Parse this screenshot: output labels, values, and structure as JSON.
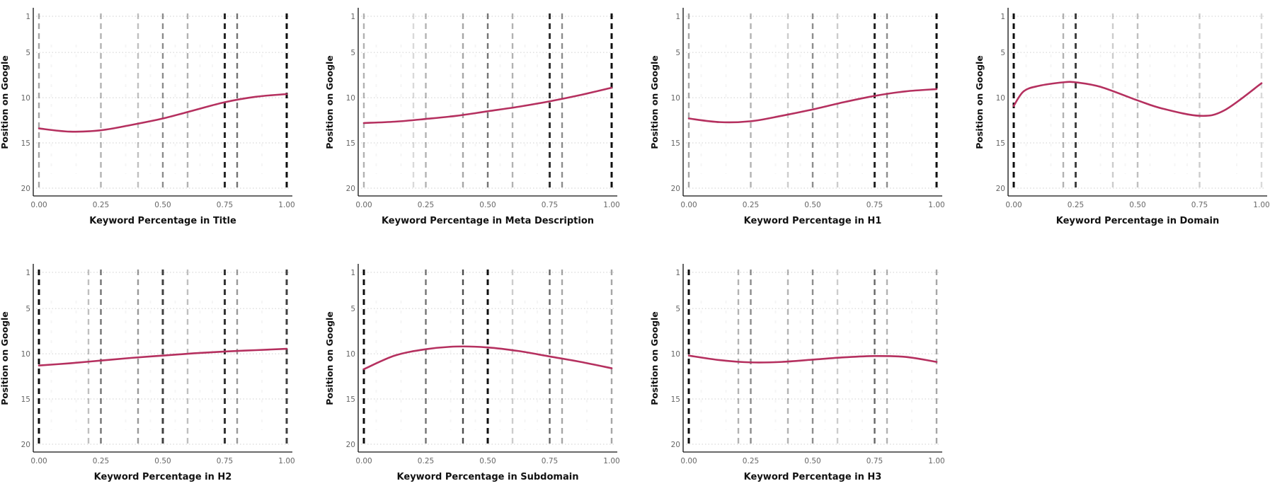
{
  "chart_data": [
    {
      "type": "line",
      "xlabel": "Keyword Percentage in Title",
      "ylabel": "Position on Google",
      "xticks": [
        "0.00",
        "0.25",
        "0.50",
        "0.75",
        "1.00"
      ],
      "yticks": [
        "1",
        "5",
        "10",
        "15",
        "20"
      ],
      "xlim": [
        0,
        1
      ],
      "ylim": [
        20,
        1
      ],
      "grid": "horizontal dotted",
      "color": "#b5305f",
      "x": [
        0,
        0.125,
        0.25,
        0.375,
        0.5,
        0.625,
        0.75,
        0.875,
        1
      ],
      "y": [
        13.4,
        13.75,
        13.6,
        13.0,
        12.3,
        11.4,
        10.5,
        9.9,
        9.6
      ],
      "marks": [
        [
          0,
          0.35
        ],
        [
          0.25,
          0.3
        ],
        [
          0.4,
          0.25
        ],
        [
          0.5,
          0.45
        ],
        [
          0.6,
          0.3
        ],
        [
          0.75,
          0.85
        ],
        [
          0.8,
          0.55
        ],
        [
          1,
          0.95
        ]
      ]
    },
    {
      "type": "line",
      "xlabel": "Keyword Percentage in Meta Description",
      "ylabel": "Position on Google",
      "xticks": [
        "0.00",
        "0.25",
        "0.50",
        "0.75",
        "1.00"
      ],
      "yticks": [
        "1",
        "5",
        "10",
        "15",
        "20"
      ],
      "xlim": [
        0,
        1
      ],
      "ylim": [
        20,
        1
      ],
      "grid": "horizontal dotted",
      "color": "#b5305f",
      "x": [
        0,
        0.125,
        0.25,
        0.375,
        0.5,
        0.625,
        0.75,
        0.875,
        1
      ],
      "y": [
        12.8,
        12.65,
        12.35,
        12.0,
        11.5,
        11.0,
        10.4,
        9.7,
        8.9
      ],
      "marks": [
        [
          0,
          0.3
        ],
        [
          0.2,
          0.15
        ],
        [
          0.25,
          0.3
        ],
        [
          0.4,
          0.35
        ],
        [
          0.5,
          0.55
        ],
        [
          0.6,
          0.3
        ],
        [
          0.75,
          0.8
        ],
        [
          0.8,
          0.45
        ],
        [
          1,
          0.95
        ]
      ]
    },
    {
      "type": "line",
      "xlabel": "Keyword Percentage in H1",
      "ylabel": "Position on Google",
      "xticks": [
        "0.00",
        "0.25",
        "0.50",
        "0.75",
        "1.00"
      ],
      "yticks": [
        "1",
        "5",
        "10",
        "15",
        "20"
      ],
      "xlim": [
        0,
        1
      ],
      "ylim": [
        20,
        1
      ],
      "grid": "horizontal dotted",
      "color": "#b5305f",
      "x": [
        0,
        0.125,
        0.25,
        0.375,
        0.5,
        0.625,
        0.75,
        0.875,
        1
      ],
      "y": [
        12.3,
        12.7,
        12.6,
        12.0,
        11.3,
        10.5,
        9.8,
        9.3,
        9.05
      ],
      "marks": [
        [
          0,
          0.35
        ],
        [
          0.25,
          0.3
        ],
        [
          0.4,
          0.2
        ],
        [
          0.5,
          0.45
        ],
        [
          0.6,
          0.2
        ],
        [
          0.75,
          0.85
        ],
        [
          0.8,
          0.45
        ],
        [
          1,
          0.95
        ]
      ]
    },
    {
      "type": "line",
      "xlabel": "Keyword Percentage in Domain",
      "ylabel": "Position on Google",
      "xticks": [
        "0.00",
        "0.25",
        "0.50",
        "0.75",
        "1.00"
      ],
      "yticks": [
        "1",
        "5",
        "10",
        "15",
        "20"
      ],
      "xlim": [
        0,
        1
      ],
      "ylim": [
        20,
        1
      ],
      "grid": "horizontal dotted",
      "color": "#b5305f",
      "x": [
        0,
        0.04,
        0.1,
        0.2,
        0.25,
        0.35,
        0.5,
        0.6,
        0.75,
        0.85,
        1
      ],
      "y": [
        10.9,
        9.3,
        8.7,
        8.3,
        8.3,
        8.8,
        10.3,
        11.2,
        12.0,
        11.4,
        8.4
      ],
      "marks": [
        [
          0,
          0.95
        ],
        [
          0.2,
          0.3
        ],
        [
          0.25,
          0.75
        ],
        [
          0.4,
          0.2
        ],
        [
          0.5,
          0.25
        ],
        [
          0.75,
          0.2
        ],
        [
          1,
          0.15
        ]
      ]
    },
    {
      "type": "line",
      "xlabel": "Keyword Percentage in H2",
      "ylabel": "Position on Google",
      "xticks": [
        "0.00",
        "0.25",
        "0.50",
        "0.75",
        "1.00"
      ],
      "yticks": [
        "1",
        "5",
        "10",
        "15",
        "20"
      ],
      "xlim": [
        0,
        1
      ],
      "ylim": [
        20,
        1
      ],
      "grid": "horizontal dotted",
      "color": "#b5305f",
      "x": [
        0,
        0.125,
        0.25,
        0.375,
        0.5,
        0.625,
        0.75,
        0.875,
        1
      ],
      "y": [
        11.3,
        11.05,
        10.75,
        10.45,
        10.2,
        9.95,
        9.75,
        9.6,
        9.45
      ],
      "marks": [
        [
          0,
          0.95
        ],
        [
          0.2,
          0.25
        ],
        [
          0.25,
          0.55
        ],
        [
          0.4,
          0.4
        ],
        [
          0.5,
          0.75
        ],
        [
          0.6,
          0.25
        ],
        [
          0.75,
          0.8
        ],
        [
          0.8,
          0.4
        ],
        [
          1,
          0.75
        ]
      ]
    },
    {
      "type": "line",
      "xlabel": "Keyword Percentage in Subdomain",
      "ylabel": "Position on Google",
      "xticks": [
        "0.00",
        "0.25",
        "0.50",
        "0.75",
        "1.00"
      ],
      "yticks": [
        "1",
        "5",
        "10",
        "15",
        "20"
      ],
      "xlim": [
        0,
        1
      ],
      "ylim": [
        20,
        1
      ],
      "grid": "horizontal dotted",
      "color": "#b5305f",
      "x": [
        0,
        0.125,
        0.25,
        0.375,
        0.5,
        0.625,
        0.75,
        0.875,
        1
      ],
      "y": [
        11.7,
        10.2,
        9.5,
        9.2,
        9.3,
        9.7,
        10.3,
        10.9,
        11.6
      ],
      "marks": [
        [
          0,
          0.95
        ],
        [
          0.25,
          0.55
        ],
        [
          0.4,
          0.7
        ],
        [
          0.5,
          0.95
        ],
        [
          0.6,
          0.2
        ],
        [
          0.75,
          0.6
        ],
        [
          0.8,
          0.35
        ],
        [
          1,
          0.35
        ]
      ]
    },
    {
      "type": "line",
      "xlabel": "Keyword Percentage in H3",
      "ylabel": "Position on Google",
      "xticks": [
        "0.00",
        "0.25",
        "0.50",
        "0.75",
        "1.00"
      ],
      "yticks": [
        "1",
        "5",
        "10",
        "15",
        "20"
      ],
      "xlim": [
        0,
        1
      ],
      "ylim": [
        20,
        1
      ],
      "grid": "horizontal dotted",
      "color": "#b5305f",
      "x": [
        0,
        0.125,
        0.25,
        0.375,
        0.5,
        0.625,
        0.75,
        0.875,
        1
      ],
      "y": [
        10.2,
        10.7,
        10.95,
        10.9,
        10.65,
        10.4,
        10.25,
        10.35,
        10.9
      ],
      "marks": [
        [
          0,
          0.95
        ],
        [
          0.2,
          0.3
        ],
        [
          0.25,
          0.45
        ],
        [
          0.4,
          0.3
        ],
        [
          0.5,
          0.45
        ],
        [
          0.6,
          0.2
        ],
        [
          0.75,
          0.6
        ],
        [
          0.8,
          0.3
        ],
        [
          1,
          0.35
        ]
      ]
    }
  ]
}
